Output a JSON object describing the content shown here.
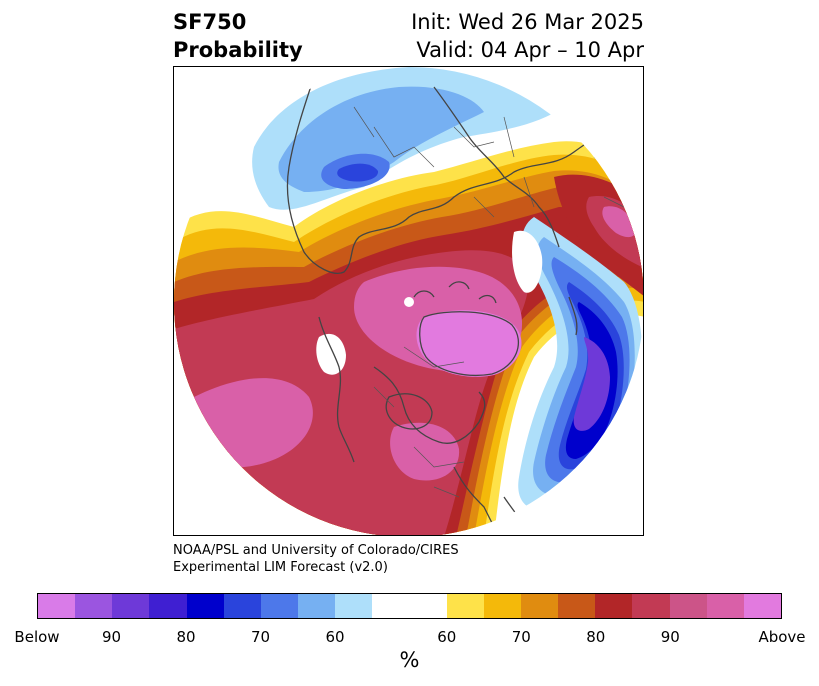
{
  "header": {
    "title_line1": "SF750",
    "title_line2": "Probability",
    "init": "Init: Wed 26 Mar 2025",
    "valid": "Valid: 04 Apr – 10 Apr"
  },
  "credit": {
    "line1": "NOAA/PSL and University of Colorado/CIRES",
    "line2": "Experimental LIM Forecast (v2.0)"
  },
  "colorbar": {
    "unit": "%",
    "colors": [
      "#d97be8",
      "#9b55e0",
      "#6e39d8",
      "#3f1fd2",
      "#0000cc",
      "#2a44dc",
      "#4d78ea",
      "#76b0f2",
      "#aedffa",
      "#ffffff",
      "#fee249",
      "#f4b90a",
      "#e08c10",
      "#c85818",
      "#b22628",
      "#c23a54",
      "#cc5488",
      "#d960a8",
      "#e27adf"
    ],
    "tick_labels": [
      "Below",
      "90",
      "80",
      "70",
      "60",
      "60",
      "70",
      "80",
      "90",
      "Above"
    ]
  },
  "map": {
    "projection": "polar-stereographic",
    "palette": {
      "above_light": "#fee249",
      "above_60": "#f4b90a",
      "above_65": "#e08c10",
      "above_70": "#c85818",
      "above_80": "#b22628",
      "above_85": "#c23a54",
      "above_90": "#d960a8",
      "above_max": "#e27adf",
      "below_light": "#aedffa",
      "below_60": "#76b0f2",
      "below_65": "#4d78ea",
      "below_70": "#2a44dc",
      "below_80": "#0000cc",
      "below_90": "#6e39d8",
      "coast": "#444444"
    }
  }
}
